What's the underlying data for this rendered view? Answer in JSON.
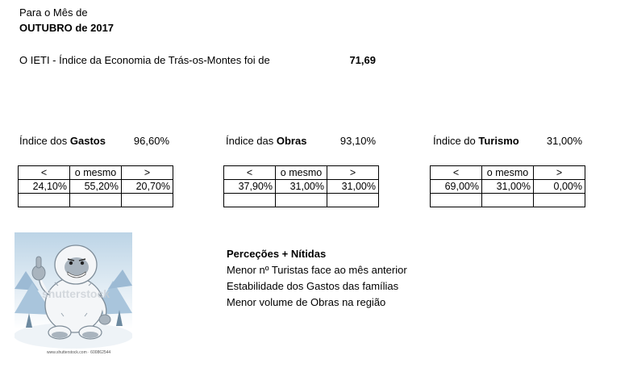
{
  "header": {
    "line1": "Para o Mês de",
    "line2": "OUTUBRO de 2017"
  },
  "ieti": {
    "label": "O IETI - Índice da Economia de Trás-os-Montes foi de",
    "value": "71,69"
  },
  "indices": [
    {
      "prefix": "Índice dos ",
      "name": "Gastos",
      "value": "96,60%",
      "headers": [
        "<",
        "o mesmo",
        ">"
      ],
      "values": [
        "24,10%",
        "55,20%",
        "20,70%"
      ]
    },
    {
      "prefix": "Índice das ",
      "name": "Obras",
      "value": "93,10%",
      "headers": [
        "<",
        "o mesmo",
        ">"
      ],
      "values": [
        "37,90%",
        "31,00%",
        "31,00%"
      ]
    },
    {
      "prefix": "Índice do ",
      "name": "Turismo",
      "value": "31,00%",
      "headers": [
        "<",
        "o mesmo",
        ">"
      ],
      "values": [
        "69,00%",
        "31,00%",
        "0,00%"
      ]
    }
  ],
  "perceptions": {
    "title": "Perceções + Nítidas",
    "items": [
      "Menor nº Turistas face ao mês anterior",
      "Estabilidade dos Gastos das famílias",
      "Menor volume de Obras na região"
    ]
  },
  "image": {
    "watermark": "shutterstock",
    "caption": "www.shutterstock.com · 600862544"
  }
}
